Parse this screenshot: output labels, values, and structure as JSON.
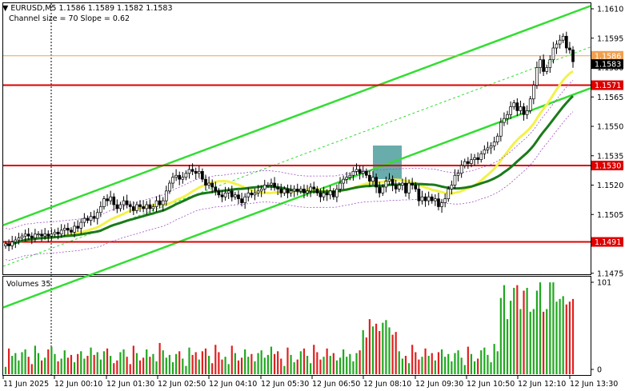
{
  "header": {
    "symbol": "EURUSD,M5",
    "ohlc": "1.1586 1.1589 1.1582 1.1583",
    "indicator": "Channel size = 70 Slope = 0.62"
  },
  "volume_panel": {
    "title": "Volumes 35"
  },
  "colors": {
    "up_candle": "#000000",
    "down_candle": "#000000",
    "channel": "#33dd33",
    "ma_slow": "#1a7a1a",
    "ma_fast": "#f2f24a",
    "level_line": "#dd0000",
    "current_price": "#000000",
    "bid_line": "#f0a050",
    "volume_up": "#1fa81f",
    "volume_down": "#e02020"
  },
  "chart_data": [
    {
      "type": "candlestick",
      "title": "EURUSD,M5",
      "y_ticks": [
        "1.1610",
        "1.1595",
        "1.1580",
        "1.1565",
        "1.1550",
        "1.1535",
        "1.1520",
        "1.1505",
        "1.1490",
        "1.1475"
      ],
      "ylim": [
        1.1466,
        1.1612
      ],
      "x_ticks": [
        "11 Jun 2025",
        "12 Jun 00:10",
        "12 Jun 01:30",
        "12 Jun 02:50",
        "12 Jun 04:10",
        "12 Jun 05:30",
        "12 Jun 06:50",
        "12 Jun 08:10",
        "12 Jun 09:30",
        "12 Jun 10:50",
        "12 Jun 12:10",
        "12 Jun 13:30"
      ],
      "price_levels": [
        {
          "label": "1.1571",
          "value": 1.1571
        },
        {
          "label": "1.1530",
          "value": 1.153
        },
        {
          "label": "1.1491",
          "value": 1.1491
        }
      ],
      "current_price": {
        "label": "1.1583",
        "value": 1.1583
      },
      "bid_label": "1.1586",
      "close": [
        1.149,
        1.1489,
        1.1491,
        1.1492,
        1.1493,
        1.1494,
        1.1495,
        1.1494,
        1.1493,
        1.1495,
        1.1495,
        1.1494,
        1.1495,
        1.1494,
        1.1495,
        1.1496,
        1.1495,
        1.1497,
        1.1498,
        1.1497,
        1.1496,
        1.1499,
        1.1498,
        1.1501,
        1.1503,
        1.1502,
        1.1504,
        1.1503,
        1.1506,
        1.1509,
        1.1513,
        1.1512,
        1.1514,
        1.151,
        1.1508,
        1.151,
        1.1512,
        1.151,
        1.1509,
        1.1507,
        1.151,
        1.1509,
        1.1508,
        1.151,
        1.1508,
        1.1509,
        1.1512,
        1.151,
        1.1512,
        1.1517,
        1.1521,
        1.1524,
        1.1525,
        1.1523,
        1.1524,
        1.1526,
        1.1528,
        1.1527,
        1.1526,
        1.1527,
        1.1523,
        1.152,
        1.1521,
        1.1519,
        1.1517,
        1.1515,
        1.1514,
        1.1516,
        1.1517,
        1.1514,
        1.1515,
        1.1513,
        1.1511,
        1.1514,
        1.1516,
        1.1515,
        1.1516,
        1.1517,
        1.1518,
        1.152,
        1.152,
        1.1521,
        1.1519,
        1.1518,
        1.1516,
        1.1518,
        1.1516,
        1.1517,
        1.1518,
        1.1517,
        1.1518,
        1.1516,
        1.1517,
        1.1519,
        1.1518,
        1.1516,
        1.1514,
        1.1516,
        1.1515,
        1.1517,
        1.1514,
        1.1518,
        1.1521,
        1.1523,
        1.1524,
        1.1525,
        1.1527,
        1.1528,
        1.1526,
        1.1527,
        1.1525,
        1.1522,
        1.1524,
        1.1519,
        1.1516,
        1.1519,
        1.1522,
        1.1523,
        1.152,
        1.1518,
        1.152,
        1.1521,
        1.1516,
        1.1521,
        1.152,
        1.1518,
        1.1512,
        1.1514,
        1.1512,
        1.1514,
        1.1512,
        1.1513,
        1.1509,
        1.1511,
        1.1513,
        1.1518,
        1.152,
        1.1525,
        1.1526,
        1.153,
        1.1532,
        1.1531,
        1.1533,
        1.1534,
        1.1533,
        1.1536,
        1.1538,
        1.1539,
        1.154,
        1.1542,
        1.1545,
        1.1552,
        1.1554,
        1.1556,
        1.156,
        1.1562,
        1.1558,
        1.156,
        1.1556,
        1.1558,
        1.1564,
        1.1571,
        1.158,
        1.1584,
        1.1578,
        1.158,
        1.1584,
        1.159,
        1.1592,
        1.1594,
        1.1596,
        1.159,
        1.1589,
        1.1583
      ]
    },
    {
      "type": "bar",
      "title": "Volumes 35",
      "y_ticks": [
        "101",
        "0"
      ],
      "ylim": [
        0,
        101
      ]
    }
  ]
}
